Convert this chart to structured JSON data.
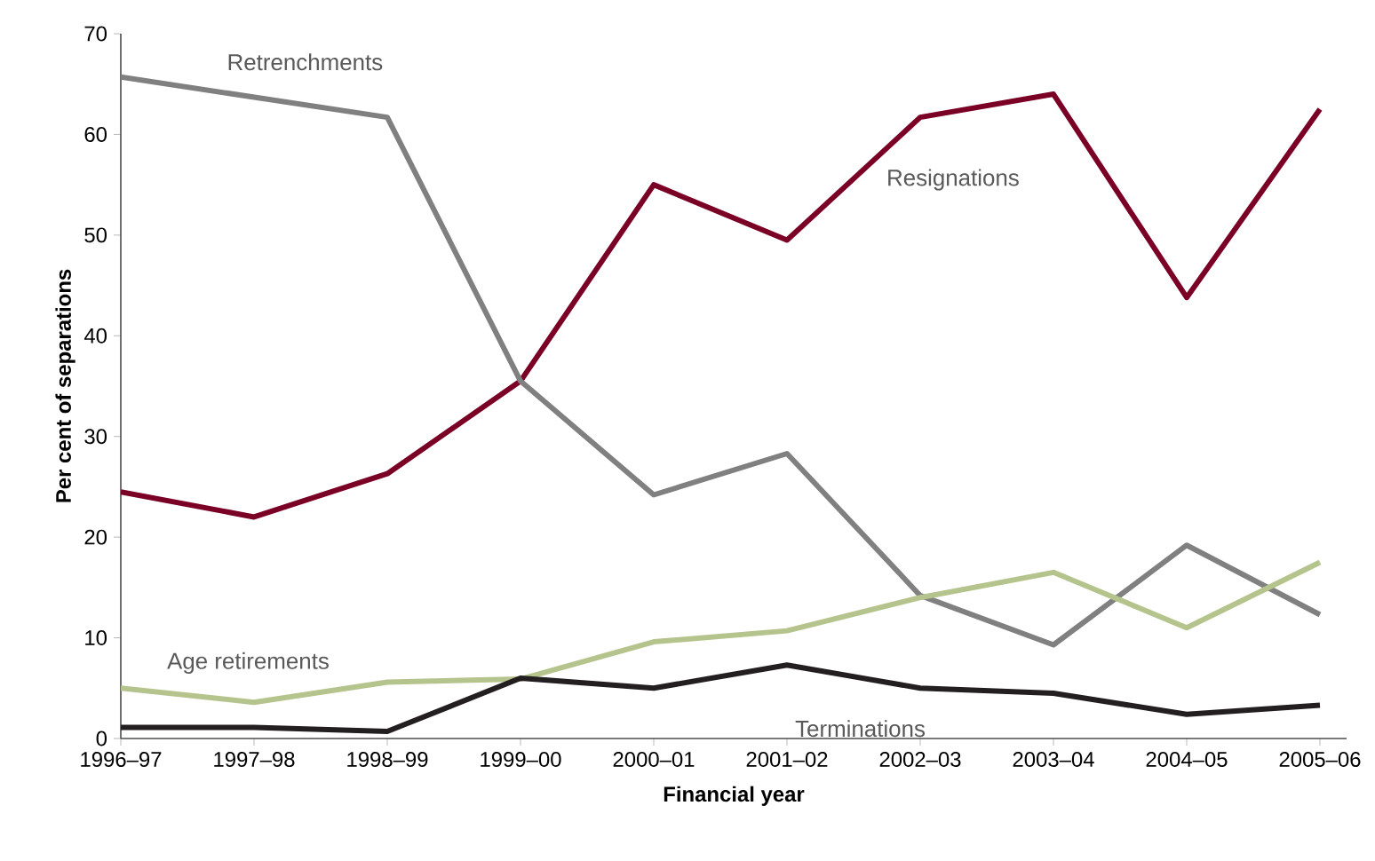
{
  "chart_data": {
    "type": "line",
    "xlabel": "Financial year",
    "ylabel": "Per cent of separations",
    "categories": [
      "1996–97",
      "1997–98",
      "1998–99",
      "1999–00",
      "2000–01",
      "2001–02",
      "2002–03",
      "2003–04",
      "2004–05",
      "2005–06"
    ],
    "series": [
      {
        "name": "Resignations",
        "color": "#7b0025",
        "values": [
          24.5,
          22,
          26.3,
          35.5,
          55,
          49.5,
          61.7,
          64,
          43.8,
          62.5
        ]
      },
      {
        "name": "Retrenchments",
        "color": "#808080",
        "values": [
          65.7,
          63.7,
          61.7,
          35.5,
          24.2,
          28.3,
          14.2,
          9.3,
          19.2,
          12.3
        ]
      },
      {
        "name": "Age retirements",
        "color": "#b5c48d",
        "values": [
          5,
          3.6,
          5.6,
          5.9,
          9.6,
          10.7,
          14,
          16.5,
          11,
          17.5
        ]
      },
      {
        "name": "Terminations",
        "color": "#231f20",
        "values": [
          1.1,
          1.1,
          0.7,
          6,
          5,
          7.3,
          5,
          4.5,
          2.4,
          3.3
        ]
      }
    ],
    "ylim": [
      0,
      70
    ],
    "yticks": [
      0,
      10,
      20,
      30,
      40,
      50,
      60,
      70
    ],
    "grid": false,
    "legend": false,
    "marker": "none",
    "line_style": "solid"
  }
}
